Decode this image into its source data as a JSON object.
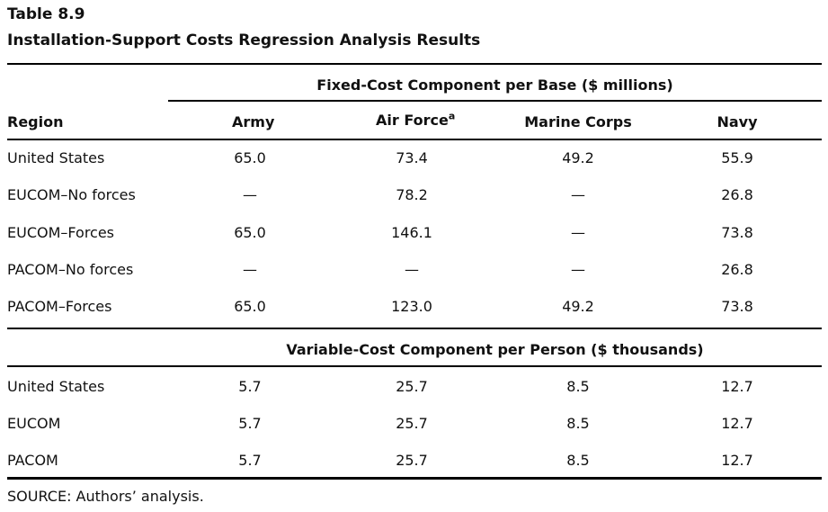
{
  "table_number": "Table 8.9",
  "table_title": "Installation-Support Costs Regression Analysis Results",
  "fixed_group_title": "Fixed-Cost Component per Base ($ millions)",
  "variable_group_title": "Variable-Cost Component per Person ($ thousands)",
  "columns": {
    "region": "Region",
    "army": "Army",
    "air_force": "Air Force",
    "air_force_note": "a",
    "marine_corps": "Marine Corps",
    "navy": "Navy"
  },
  "fixed_rows": [
    {
      "region": "United States",
      "army": "65.0",
      "air_force": "73.4",
      "marine_corps": "49.2",
      "navy": "55.9"
    },
    {
      "region": "EUCOM–No forces",
      "army": "—",
      "air_force": "78.2",
      "marine_corps": "—",
      "navy": "26.8"
    },
    {
      "region": "EUCOM–Forces",
      "army": "65.0",
      "air_force": "146.1",
      "marine_corps": "—",
      "navy": "73.8"
    },
    {
      "region": "PACOM–No forces",
      "army": "—",
      "air_force": "—",
      "marine_corps": "—",
      "navy": "26.8"
    },
    {
      "region": "PACOM–Forces",
      "army": "65.0",
      "air_force": "123.0",
      "marine_corps": "49.2",
      "navy": "73.8"
    }
  ],
  "variable_rows": [
    {
      "region": "United States",
      "army": "5.7",
      "air_force": "25.7",
      "marine_corps": "8.5",
      "navy": "12.7"
    },
    {
      "region": "EUCOM",
      "army": "5.7",
      "air_force": "25.7",
      "marine_corps": "8.5",
      "navy": "12.7"
    },
    {
      "region": "PACOM",
      "army": "5.7",
      "air_force": "25.7",
      "marine_corps": "8.5",
      "navy": "12.7"
    }
  ],
  "source_note": "SOURCE: Authors’ analysis."
}
